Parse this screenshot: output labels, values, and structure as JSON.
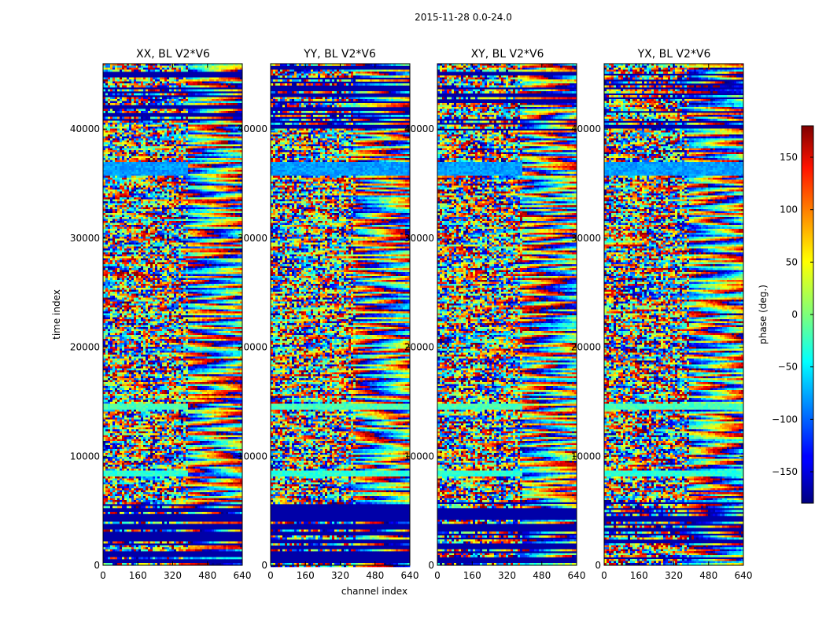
{
  "chart_data": {
    "type": "heatmap",
    "suptitle": "2015-11-28 0.0-24.0",
    "xlabel": "channel index",
    "ylabel": "time index",
    "xlim": [
      0,
      640
    ],
    "ylim": [
      0,
      46000
    ],
    "xticks": [
      0,
      160,
      320,
      480,
      640
    ],
    "yticks": [
      0,
      10000,
      20000,
      30000,
      40000
    ],
    "xtick_labels": [
      "0",
      "160",
      "320",
      "480",
      "640"
    ],
    "ytick_labels": [
      "0",
      "10000",
      "20000",
      "30000",
      "40000"
    ],
    "panels": [
      {
        "title": "XX, BL V2*V6",
        "pol": "XX"
      },
      {
        "title": "YY, BL V2*V6",
        "pol": "YY"
      },
      {
        "title": "XY, BL V2*V6",
        "pol": "XY"
      },
      {
        "title": "YX, BL V2*V6",
        "pol": "YX"
      }
    ],
    "colorbar": {
      "label": "phase (deg.)",
      "vmin": -180,
      "vmax": 180,
      "ticks": [
        -150,
        -100,
        -50,
        0,
        50,
        100,
        150
      ],
      "tick_labels": [
        "−150",
        "−100",
        "−50",
        "0",
        "50",
        "100",
        "150"
      ],
      "colormap": "jet"
    },
    "bands": [
      {
        "t0": 14300,
        "t1": 14900,
        "phase": -20
      },
      {
        "t0": 8200,
        "t1": 8800,
        "phase": -30
      },
      {
        "t0": 35800,
        "t1": 37000,
        "phase": -80
      }
    ]
  }
}
